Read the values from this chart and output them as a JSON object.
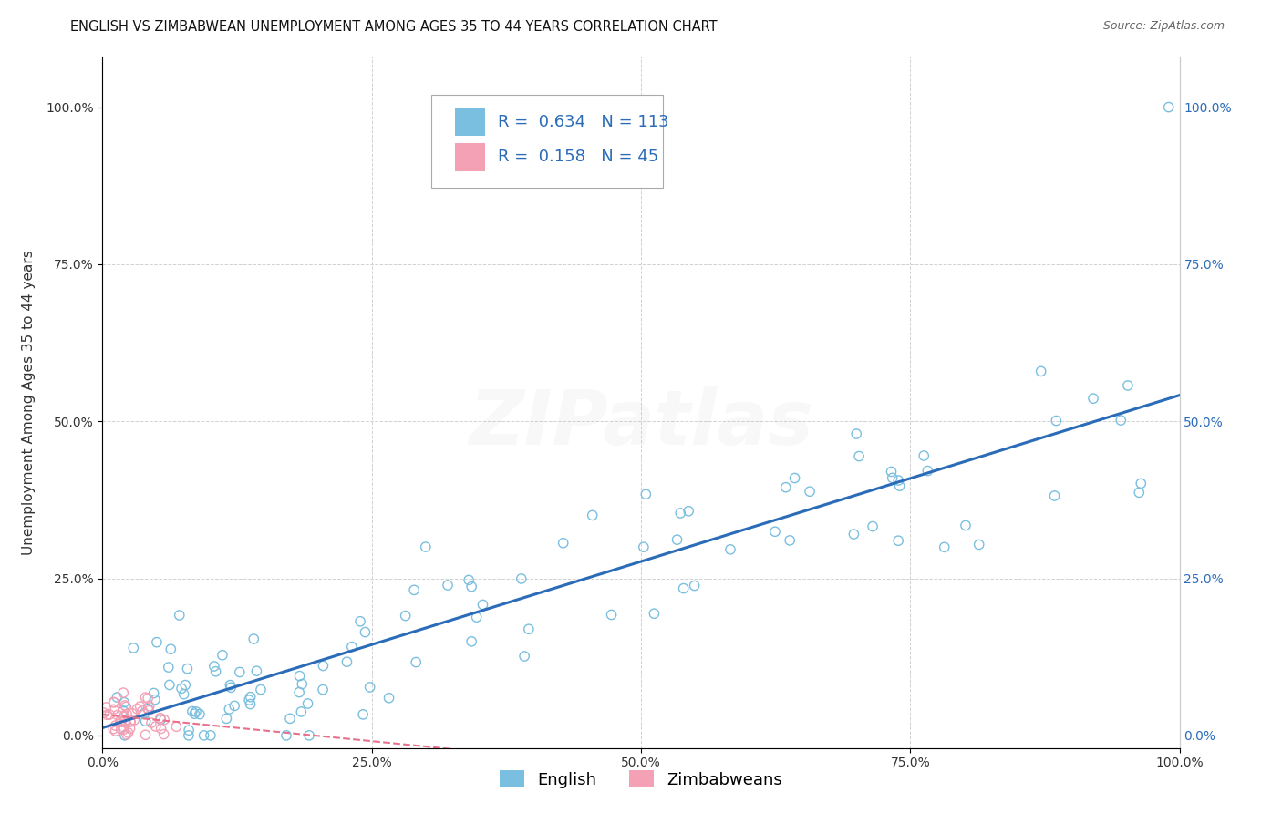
{
  "title": "ENGLISH VS ZIMBABWEAN UNEMPLOYMENT AMONG AGES 35 TO 44 YEARS CORRELATION CHART",
  "source": "Source: ZipAtlas.com",
  "ylabel": "Unemployment Among Ages 35 to 44 years",
  "watermark": "ZIPatlas",
  "english_R": 0.634,
  "english_N": 113,
  "zimbabwean_R": 0.158,
  "zimbabwean_N": 45,
  "english_color": "#7abfdf",
  "zimbabwean_color": "#f4a0b5",
  "english_line_color": "#2b6cb8",
  "zimbabwean_line_color": "#e8708a",
  "background_color": "#ffffff",
  "grid_color": "#cccccc",
  "xlim": [
    0,
    1.0
  ],
  "ylim": [
    -0.02,
    1.08
  ],
  "xticks": [
    0,
    0.25,
    0.5,
    0.75,
    1.0
  ],
  "xticklabels": [
    "0.0%",
    "25.0%",
    "50.0%",
    "75.0%",
    "100.0%"
  ],
  "yticks": [
    0,
    0.25,
    0.5,
    0.75,
    1.0
  ],
  "yticklabels": [
    "0.0%",
    "25.0%",
    "50.0%",
    "75.0%",
    "100.0%"
  ],
  "marker_size": 55,
  "marker_linewidth": 1.0,
  "title_fontsize": 10.5,
  "label_fontsize": 11,
  "tick_fontsize": 10,
  "legend_fontsize": 13,
  "watermark_fontsize": 60,
  "watermark_alpha": 0.1,
  "watermark_color": "#bbbbbb",
  "right_tick_color": "#2b6cb8"
}
